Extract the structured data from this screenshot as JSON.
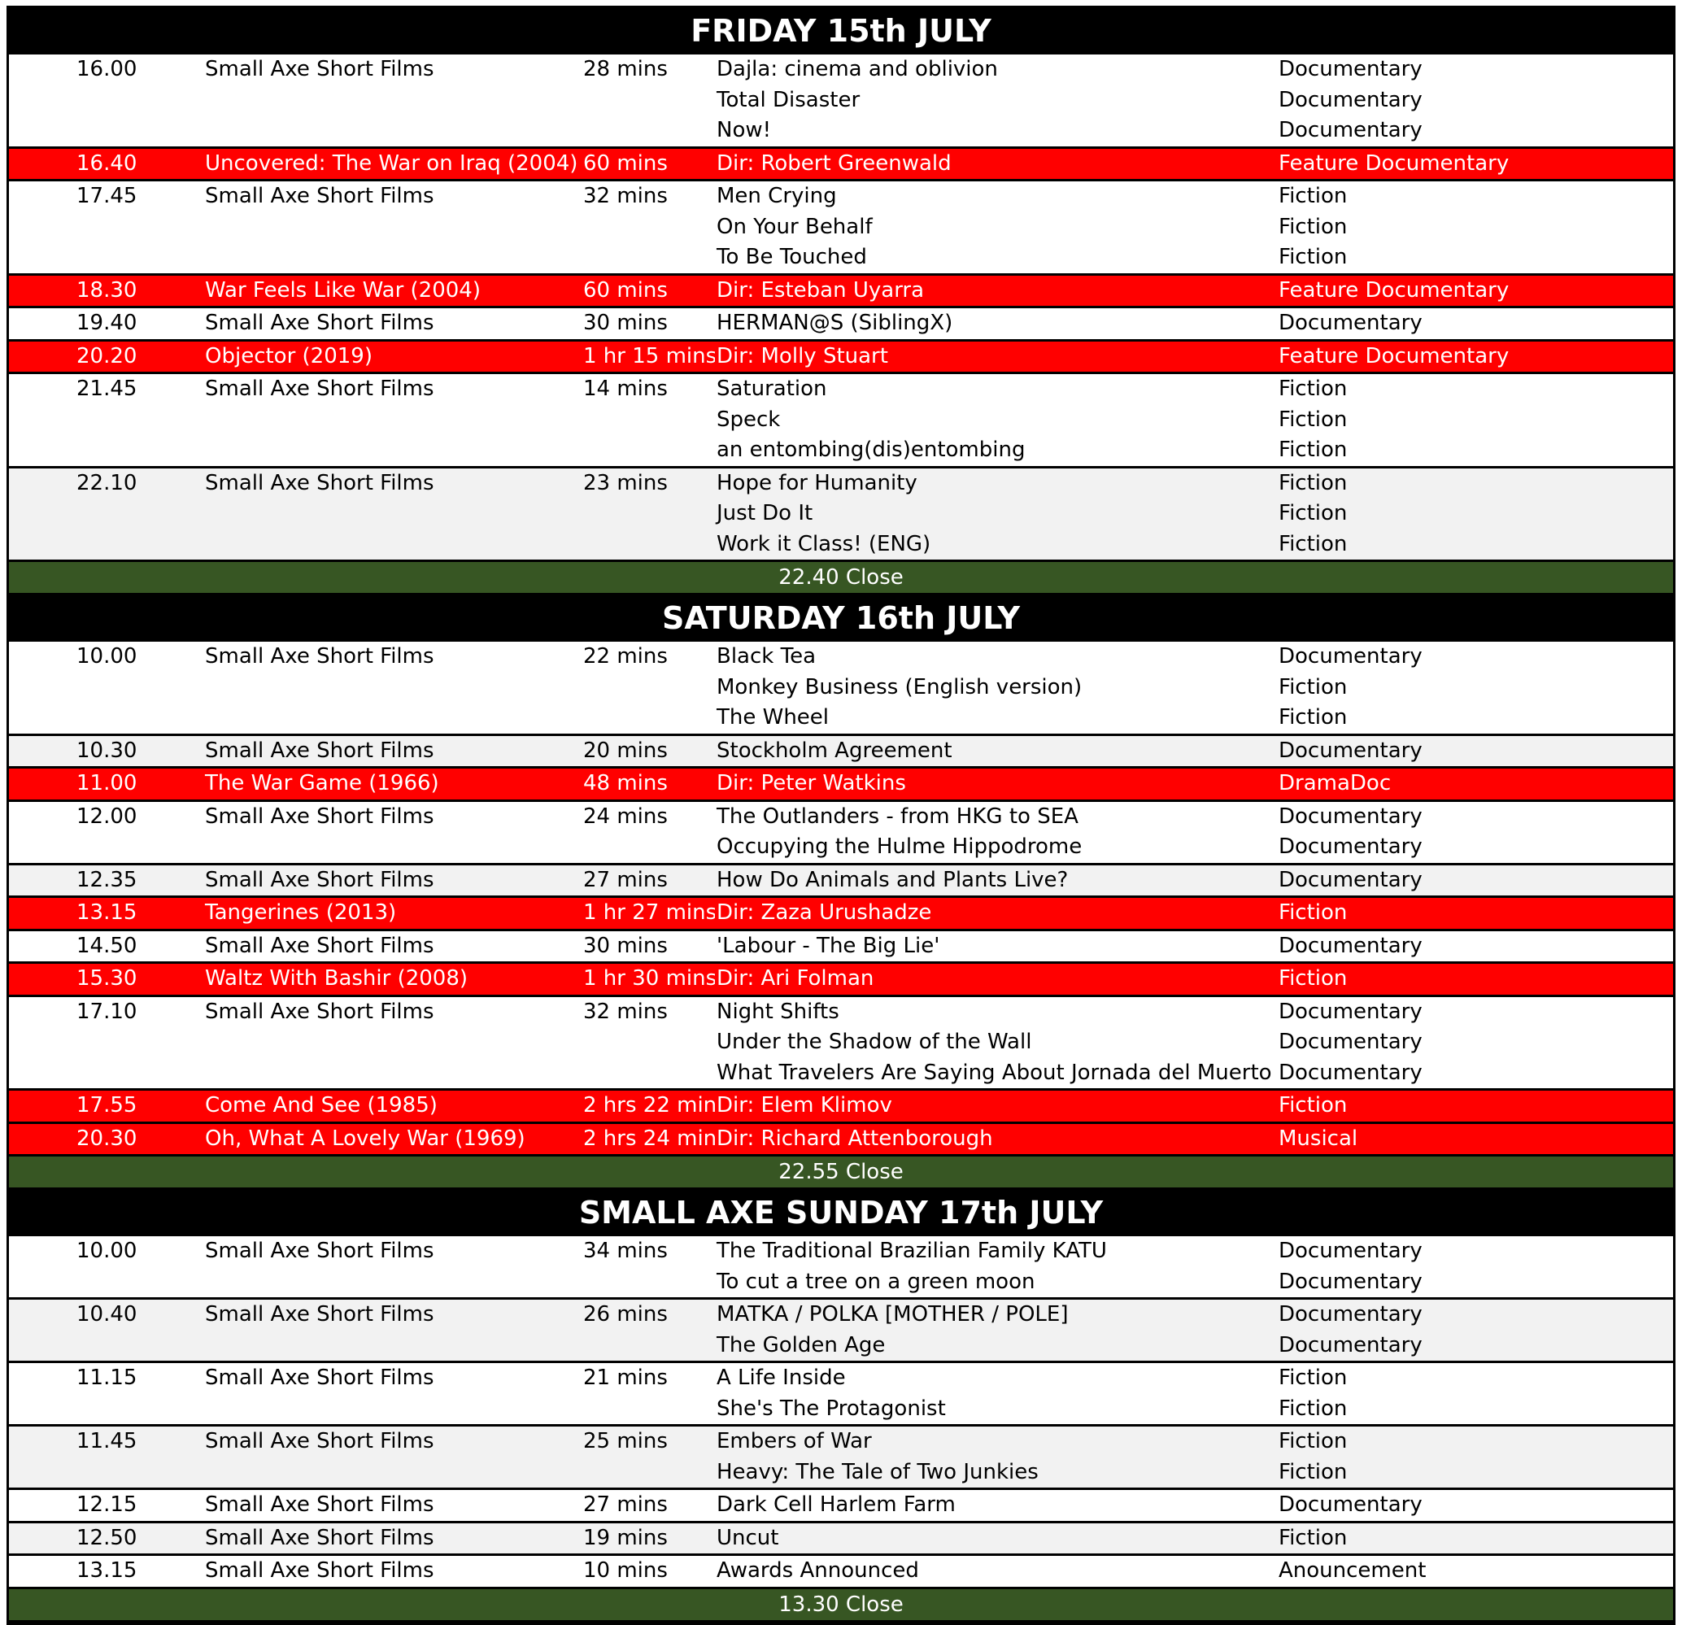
{
  "days": [
    {
      "title": "FRIDAY 15th JULY",
      "close": "22.40 Close",
      "rows": [
        {
          "time": "16.00",
          "program": "Small Axe Short Films",
          "duration": "28 mins",
          "fill": "#ffffff",
          "films": [
            {
              "title": "Dajla: cinema and oblivion",
              "genre": "Documentary"
            },
            {
              "title": "Total Disaster",
              "genre": "Documentary"
            },
            {
              "title": "Now!",
              "genre": "Documentary"
            }
          ]
        },
        {
          "time": "16.40",
          "program": "Uncovered: The War on Iraq (2004)",
          "duration": "60 mins",
          "fill": "#ff0000",
          "ink": "#ffffff",
          "films": [
            {
              "title": "Dir: Robert Greenwald",
              "genre": "Feature Documentary"
            }
          ]
        },
        {
          "time": "17.45",
          "program": "Small Axe Short Films",
          "duration": "32 mins",
          "fill": "#ffffff",
          "films": [
            {
              "title": "Men Crying",
              "genre": "Fiction"
            },
            {
              "title": "On Your Behalf",
              "genre": "Fiction"
            },
            {
              "title": "To Be Touched",
              "genre": "Fiction"
            }
          ]
        },
        {
          "time": "18.30",
          "program": "War Feels Like War (2004)",
          "duration": "60 mins",
          "fill": "#ff0000",
          "ink": "#ffffff",
          "films": [
            {
              "title": "Dir: Esteban Uyarra",
              "genre": "Feature Documentary"
            }
          ]
        },
        {
          "time": "19.40",
          "program": "Small Axe Short Films",
          "duration": "30 mins",
          "fill": "#ffffff",
          "films": [
            {
              "title": "HERMAN@S (SiblingX)",
              "genre": "Documentary"
            }
          ]
        },
        {
          "time": "20.20",
          "program": "Objector (2019)",
          "duration": "1 hr 15 mins",
          "fill": "#ff0000",
          "ink": "#ffffff",
          "films": [
            {
              "title": "Dir: Molly Stuart",
              "genre": "Feature Documentary"
            }
          ]
        },
        {
          "time": "21.45",
          "program": "Small Axe Short Films",
          "duration": "14 mins",
          "fill": "#ffffff",
          "films": [
            {
              "title": "Saturation",
              "genre": "Fiction"
            },
            {
              "title": "Speck",
              "genre": "Fiction"
            },
            {
              "title": "an entombing(dis)entombing",
              "genre": "Fiction"
            }
          ]
        },
        {
          "time": "22.10",
          "program": "Small Axe Short Films",
          "duration": "23 mins",
          "fill": "#f2f2f2",
          "films": [
            {
              "title": "Hope for Humanity",
              "genre": "Fiction"
            },
            {
              "title": "Just Do It",
              "genre": "Fiction"
            },
            {
              "title": "Work it Class! (ENG)",
              "genre": "Fiction"
            }
          ]
        }
      ]
    },
    {
      "title": "SATURDAY 16th JULY",
      "close": "22.55 Close",
      "rows": [
        {
          "time": "10.00",
          "program": "Small Axe Short Films",
          "duration": "22 mins",
          "fill": "#ffffff",
          "films": [
            {
              "title": "Black Tea",
              "genre": "Documentary"
            },
            {
              "title": "Monkey Business (English version)",
              "genre": "Fiction"
            },
            {
              "title": "The Wheel",
              "genre": "Fiction"
            }
          ]
        },
        {
          "time": "10.30",
          "program": "Small Axe Short Films",
          "duration": "20 mins",
          "fill": "#f2f2f2",
          "films": [
            {
              "title": "Stockholm Agreement",
              "genre": "Documentary"
            }
          ]
        },
        {
          "time": "11.00",
          "program": "The War Game (1966)",
          "duration": "48 mins",
          "fill": "#ff0000",
          "ink": "#ffffff",
          "films": [
            {
              "title": "Dir: Peter Watkins",
              "genre": "DramaDoc"
            }
          ]
        },
        {
          "time": "12.00",
          "program": "Small Axe Short Films",
          "duration": "24 mins",
          "fill": "#ffffff",
          "films": [
            {
              "title": "The Outlanders - from HKG to SEA",
              "genre": "Documentary"
            },
            {
              "title": "Occupying the Hulme Hippodrome",
              "genre": "Documentary"
            }
          ]
        },
        {
          "time": "12.35",
          "program": "Small Axe Short Films",
          "duration": "27 mins",
          "fill": "#f2f2f2",
          "films": [
            {
              "title": "How Do Animals and Plants Live?",
              "genre": "Documentary"
            }
          ]
        },
        {
          "time": "13.15",
          "program": "Tangerines (2013)",
          "duration": "1 hr 27 mins",
          "fill": "#ff0000",
          "ink": "#ffffff",
          "films": [
            {
              "title": "Dir: Zaza Urushadze",
              "genre": "Fiction"
            }
          ]
        },
        {
          "time": "14.50",
          "program": "Small Axe Short Films",
          "duration": "30 mins",
          "fill": "#ffffff",
          "films": [
            {
              "title": "'Labour - The Big Lie'",
              "genre": "Documentary"
            }
          ]
        },
        {
          "time": "15.30",
          "program": "Waltz With Bashir (2008)",
          "duration": "1 hr 30 mins",
          "fill": "#ff0000",
          "ink": "#ffffff",
          "films": [
            {
              "title": "Dir: Ari Folman",
              "genre": "Fiction"
            }
          ]
        },
        {
          "time": "17.10",
          "program": "Small Axe Short Films",
          "duration": "32 mins",
          "fill": "#ffffff",
          "films": [
            {
              "title": "Night Shifts",
              "genre": "Documentary"
            },
            {
              "title": "Under the Shadow of the Wall",
              "genre": "Documentary"
            },
            {
              "title": "What Travelers Are Saying About Jornada del Muerto",
              "genre": "Documentary"
            }
          ]
        },
        {
          "time": "17.55",
          "program": "Come And See (1985)",
          "duration": "2 hrs 22 mins",
          "fill": "#ff0000",
          "ink": "#ffffff",
          "films": [
            {
              "title": "Dir: Elem Klimov",
              "genre": "Fiction"
            }
          ]
        },
        {
          "time": "20.30",
          "program": "Oh, What A Lovely War (1969)",
          "duration": "2 hrs 24 mins",
          "fill": "#ff0000",
          "ink": "#ffffff",
          "films": [
            {
              "title": "Dir: Richard Attenborough",
              "genre": "Musical"
            }
          ]
        }
      ]
    },
    {
      "title": "SMALL AXE SUNDAY 17th JULY",
      "close": "13.30 Close",
      "rows": [
        {
          "time": "10.00",
          "program": "Small Axe Short Films",
          "duration": "34 mins",
          "fill": "#ffffff",
          "films": [
            {
              "title": "The Traditional Brazilian Family KATU",
              "genre": "Documentary"
            },
            {
              "title": "To cut a tree on a green moon",
              "genre": "Documentary"
            }
          ]
        },
        {
          "time": "10.40",
          "program": "Small Axe Short Films",
          "duration": "26 mins",
          "fill": "#f2f2f2",
          "films": [
            {
              "title": "MATKA / POLKA [MOTHER / POLE]",
              "genre": "Documentary"
            },
            {
              "title": "The Golden Age",
              "genre": "Documentary"
            }
          ]
        },
        {
          "time": "11.15",
          "program": "Small Axe Short Films",
          "duration": "21 mins",
          "fill": "#ffffff",
          "films": [
            {
              "title": "A Life Inside",
              "genre": "Fiction"
            },
            {
              "title": "She's The Protagonist",
              "genre": "Fiction"
            }
          ]
        },
        {
          "time": "11.45",
          "program": "Small Axe Short Films",
          "duration": "25 mins",
          "fill": "#f2f2f2",
          "films": [
            {
              "title": "Embers of War",
              "genre": "Fiction"
            },
            {
              "title": "Heavy: The Tale of Two Junkies",
              "genre": "Fiction"
            }
          ]
        },
        {
          "time": "12.15",
          "program": "Small Axe Short Films",
          "duration": "27 mins",
          "fill": "#ffffff",
          "films": [
            {
              "title": "Dark Cell Harlem Farm",
              "genre": "Documentary"
            }
          ]
        },
        {
          "time": "12.50",
          "program": "Small Axe Short Films",
          "duration": "19 mins",
          "fill": "#f2f2f2",
          "films": [
            {
              "title": "Uncut",
              "genre": "Fiction"
            }
          ]
        },
        {
          "time": "13.15",
          "program": "Small Axe Short Films",
          "duration": "10 mins",
          "fill": "#ffffff",
          "films": [
            {
              "title": "Awards Announced",
              "genre": "Anouncement"
            }
          ]
        }
      ]
    }
  ]
}
